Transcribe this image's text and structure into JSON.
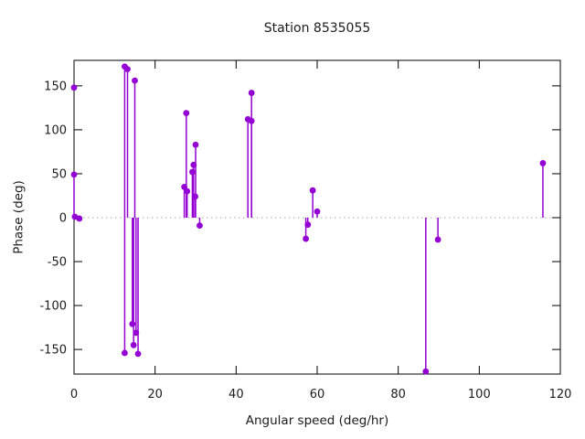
{
  "window": {
    "background": "#ffffff"
  },
  "chart_data": {
    "type": "scatter",
    "style": "impulses-with-points",
    "title": "Station 8535055",
    "xlabel": "Angular speed (deg/hr)",
    "ylabel": "Phase (deg)",
    "xlim": [
      0,
      120
    ],
    "ylim": [
      -178,
      179
    ],
    "x_ticks": [
      0,
      20,
      40,
      60,
      80,
      100,
      120
    ],
    "y_ticks": [
      -150,
      -100,
      -50,
      0,
      50,
      100,
      150
    ],
    "grid": false,
    "legend_position": "none",
    "zero_line": {
      "show": true,
      "color": "#a9a9a9",
      "style": "dotted"
    },
    "colors": {
      "series": "#9400d3",
      "frame": "#000000",
      "text": "#1c1c1c"
    },
    "points": [
      {
        "x": 0,
        "y": 148,
        "stem": false
      },
      {
        "x": 0,
        "y": 49
      },
      {
        "x": 0.2,
        "y": 1
      },
      {
        "x": 1.3,
        "y": -1
      },
      {
        "x": 12.5,
        "y": 172
      },
      {
        "x": 13.2,
        "y": 169
      },
      {
        "x": 15.0,
        "y": 156
      },
      {
        "x": 14.4,
        "y": -121
      },
      {
        "x": 15.3,
        "y": -131
      },
      {
        "x": 14.7,
        "y": -145
      },
      {
        "x": 12.5,
        "y": -154
      },
      {
        "x": 15.8,
        "y": -155
      },
      {
        "x": 27.7,
        "y": 119
      },
      {
        "x": 30.0,
        "y": 83
      },
      {
        "x": 29.5,
        "y": 60
      },
      {
        "x": 29.2,
        "y": 52
      },
      {
        "x": 27.2,
        "y": 35
      },
      {
        "x": 27.9,
        "y": 30
      },
      {
        "x": 29.9,
        "y": 24
      },
      {
        "x": 31.0,
        "y": -9
      },
      {
        "x": 43.8,
        "y": 142
      },
      {
        "x": 42.9,
        "y": 112
      },
      {
        "x": 43.8,
        "y": 110
      },
      {
        "x": 58.9,
        "y": 31
      },
      {
        "x": 60.0,
        "y": 7
      },
      {
        "x": 57.7,
        "y": -8
      },
      {
        "x": 57.2,
        "y": -24
      },
      {
        "x": 86.8,
        "y": -175
      },
      {
        "x": 89.8,
        "y": -25
      },
      {
        "x": 115.7,
        "y": 62
      }
    ]
  }
}
